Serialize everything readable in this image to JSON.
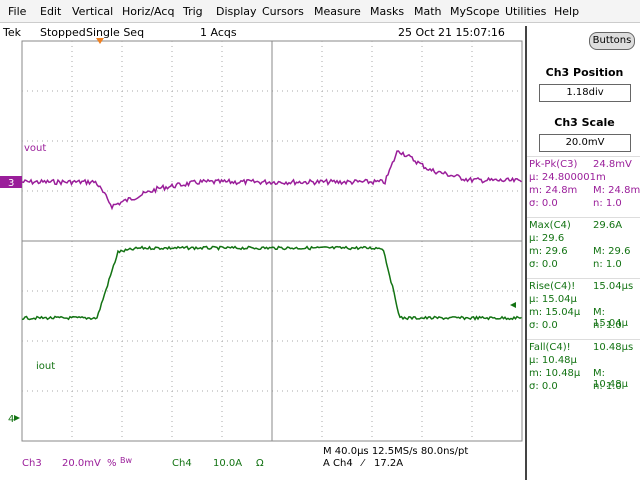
{
  "menu": [
    "File",
    "Edit",
    "Vertical",
    "Horiz/Acq",
    "Trig",
    "Display",
    "Cursors",
    "Measure",
    "Masks",
    "Math",
    "MyScope",
    "Utilities",
    "Help"
  ],
  "status": {
    "brand": "Tek",
    "state": "Stopped",
    "mode": "Single Seq",
    "acqs": "1 Acqs",
    "datetime": "25 Oct 21 15:07:16"
  },
  "buttons": "Buttons",
  "panel": {
    "position_label": "Ch3 Position",
    "position_value": "1.18div",
    "scale_label": "Ch3 Scale",
    "scale_value": "20.0mV"
  },
  "measurements": [
    {
      "name": "Pk-Pk(C3)",
      "value": "24.8mV",
      "mean": "μ: 24.800001m",
      "min": "m: 24.8m",
      "max": "M: 24.8m",
      "std": "σ: 0.0",
      "count": "n: 1.0"
    },
    {
      "name": "Max(C4)",
      "value": "29.6A",
      "mean": "μ: 29.6",
      "min": "m: 29.6",
      "max": "M: 29.6",
      "std": "σ: 0.0",
      "count": "n: 1.0"
    },
    {
      "name": "Rise(C4)!",
      "value": "15.04μs",
      "mean": "μ: 15.04μ",
      "min": "m: 15.04μ",
      "max": "M: 15.04μ",
      "std": "σ: 0.0",
      "count": "n: 1.0"
    },
    {
      "name": "Fall(C4)!",
      "value": "10.48μs",
      "mean": "μ: 10.48μ",
      "min": "m: 10.48μ",
      "max": "M: 10.48μ",
      "std": "σ: 0.0",
      "count": "n: 1.0"
    }
  ],
  "traces": {
    "ch3_label": "vout",
    "ch4_label": "iout",
    "ch3_marker": "3",
    "ch4_marker": "4"
  },
  "footer": {
    "ch3": "Ch3",
    "ch3_scale": "20.0mV",
    "ch3_flags": "%",
    "ch3_bw": "Bw",
    "ch4": "Ch4",
    "ch4_scale": "10.0A",
    "ch4_coupling": "Ω",
    "timebase": "M 40.0μs 12.5MS/s 80.0ns/pt",
    "trigger_source": "A Ch4",
    "trigger_slope": "⁄",
    "trigger_level": "17.2A"
  }
}
